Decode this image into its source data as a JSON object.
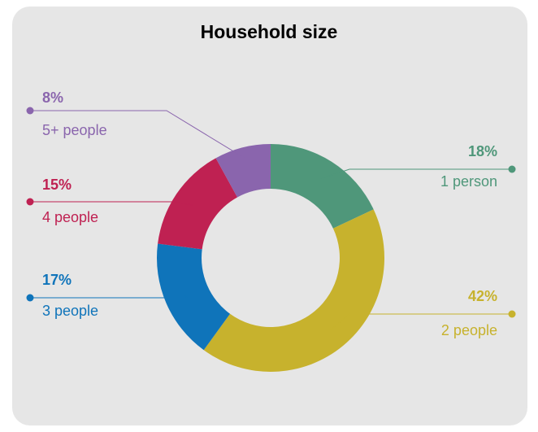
{
  "chart_data": {
    "type": "pie",
    "donut": true,
    "title": "Household size",
    "slices": [
      {
        "label": "1 person",
        "pct_label": "18%",
        "value": 18,
        "color": "#4f977a"
      },
      {
        "label": "2 people",
        "pct_label": "42%",
        "value": 42,
        "color": "#c7b22d"
      },
      {
        "label": "3 people",
        "pct_label": "17%",
        "value": 17,
        "color": "#0f74ba"
      },
      {
        "label": "4 people",
        "pct_label": "15%",
        "value": 15,
        "color": "#bf2152"
      },
      {
        "label": "5+ people",
        "pct_label": "8%",
        "value": 8,
        "color": "#8a65ad"
      }
    ]
  }
}
